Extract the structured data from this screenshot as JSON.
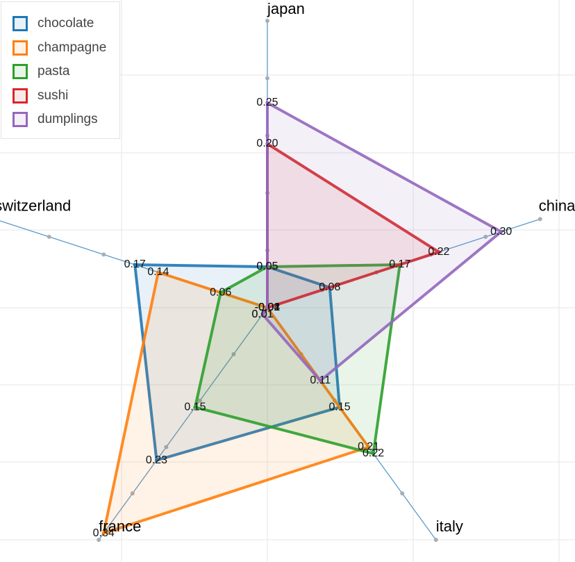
{
  "chart_data": {
    "type": "radar",
    "axes": [
      "japan",
      "china",
      "italy",
      "france",
      "switzerland"
    ],
    "range": [
      0,
      0.35
    ],
    "grid": true,
    "legend_position": "top-left",
    "series": [
      {
        "name": "chocolate",
        "color": "#1f77b4",
        "values": [
          0.05,
          0.08,
          0.15,
          0.23,
          0.17
        ]
      },
      {
        "name": "champagne",
        "color": "#ff7f0e",
        "values": [
          -0.04,
          -0.01,
          0.21,
          0.34,
          0.14
        ]
      },
      {
        "name": "pasta",
        "color": "#2ca02c",
        "values": [
          0.05,
          0.17,
          0.22,
          0.15,
          0.06
        ]
      },
      {
        "name": "sushi",
        "color": "#d62728",
        "values": [
          0.2,
          0.22,
          -0.01,
          0.01,
          -0.02
        ]
      },
      {
        "name": "dumplings",
        "color": "#9467bd",
        "values": [
          0.25,
          0.3,
          0.11,
          0.01,
          -0.01
        ]
      }
    ]
  }
}
